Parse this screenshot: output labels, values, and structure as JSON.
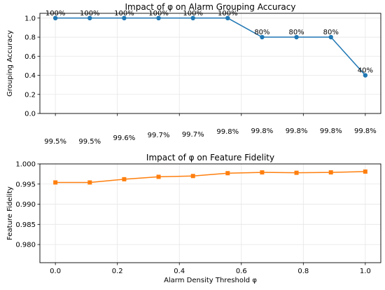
{
  "chart_data": [
    {
      "type": "line",
      "title": "Impact of φ on Alarm Grouping Accuracy",
      "xlabel": "",
      "ylabel": "Grouping Accuracy",
      "x": [
        0.0,
        0.111,
        0.222,
        0.333,
        0.444,
        0.556,
        0.667,
        0.778,
        0.889,
        1.0
      ],
      "series": [
        {
          "name": "",
          "color": "#1f77b4",
          "marker": "circle",
          "values": [
            1.0,
            1.0,
            1.0,
            1.0,
            1.0,
            1.0,
            0.8,
            0.8,
            0.8,
            0.4
          ]
        }
      ],
      "point_labels": [
        "100%",
        "100%",
        "100%",
        "100%",
        "100%",
        "100%",
        "80%",
        "80%",
        "80%",
        "40%"
      ],
      "ylim": [
        0.0,
        1.05
      ],
      "yticks": [
        "0.0",
        "0.2",
        "0.4",
        "0.6",
        "0.8",
        "1.0"
      ],
      "x_tick_labels_visible": false,
      "grid": true,
      "below_axis_labels": [
        "99.5%",
        "99.5%",
        "99.6%",
        "99.7%",
        "99.7%",
        "99.8%",
        "99.8%",
        "99.8%",
        "99.8%",
        "99.8%"
      ]
    },
    {
      "type": "line",
      "title": "Impact of φ on Feature Fidelity",
      "xlabel": "Alarm Density Threshold φ",
      "ylabel": "Feature Fidelity",
      "x": [
        0.0,
        0.111,
        0.222,
        0.333,
        0.444,
        0.556,
        0.667,
        0.778,
        0.889,
        1.0
      ],
      "series": [
        {
          "name": "",
          "color": "#ff7f0e",
          "marker": "square",
          "values": [
            0.9954,
            0.9954,
            0.9962,
            0.9968,
            0.997,
            0.9977,
            0.9979,
            0.9978,
            0.9979,
            0.9981
          ]
        }
      ],
      "ylim": [
        0.9755,
        1.0
      ],
      "yticks": [
        "0.980",
        "0.985",
        "0.990",
        "0.995",
        "1.000"
      ],
      "xlim": [
        -0.05,
        1.05
      ],
      "xticks": [
        "0.0",
        "0.2",
        "0.4",
        "0.6",
        "0.8",
        "1.0"
      ],
      "grid": true
    }
  ]
}
